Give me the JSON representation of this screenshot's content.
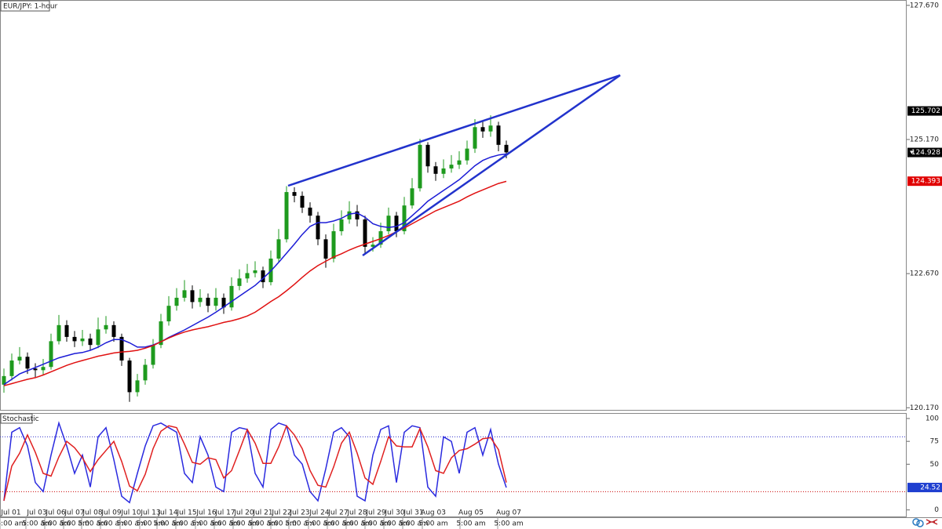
{
  "chart_data": [
    {
      "type": "candlestick",
      "title": "EUR/JPY: 1-hour",
      "x": [
        0,
        1,
        2,
        3,
        4,
        5,
        6,
        7,
        8,
        9,
        10,
        11,
        12,
        13,
        14,
        15,
        16,
        17,
        18,
        19,
        20,
        21,
        22,
        23,
        24,
        25,
        26,
        27,
        28,
        29,
        30,
        31,
        32,
        33,
        34,
        35,
        36,
        37,
        38,
        39,
        40,
        41,
        42,
        43,
        44,
        45,
        46,
        47,
        48,
        49,
        50,
        51,
        52,
        53,
        54,
        55,
        56,
        57,
        58,
        59,
        60,
        61,
        62,
        63,
        64
      ],
      "open": [
        120.6,
        120.76,
        121.05,
        121.12,
        120.9,
        120.87,
        120.93,
        121.41,
        121.71,
        121.49,
        121.41,
        121.46,
        121.34,
        121.63,
        121.71,
        121.49,
        121.05,
        120.46,
        120.68,
        120.97,
        121.34,
        121.78,
        122.07,
        122.22,
        122.36,
        122.14,
        122.22,
        122.07,
        122.22,
        122.04,
        122.44,
        122.58,
        122.68,
        122.73,
        122.51,
        122.95,
        123.31,
        124.19,
        124.12,
        123.9,
        123.75,
        123.31,
        122.95,
        123.46,
        123.68,
        123.83,
        123.68,
        123.17,
        123.21,
        123.46,
        123.75,
        123.46,
        123.94,
        124.26,
        125.07,
        124.67,
        124.53,
        124.63,
        124.7,
        124.78,
        125.0,
        125.4,
        125.32,
        125.43,
        125.07
      ],
      "high": [
        120.9,
        121.18,
        121.3,
        121.2,
        121.0,
        121.08,
        121.55,
        121.9,
        121.8,
        121.6,
        121.62,
        121.55,
        121.85,
        121.88,
        121.78,
        121.55,
        121.1,
        120.8,
        121.08,
        121.45,
        121.92,
        122.25,
        122.4,
        122.55,
        122.45,
        122.38,
        122.3,
        122.4,
        122.3,
        122.6,
        122.75,
        122.85,
        122.9,
        122.8,
        123.1,
        123.5,
        124.3,
        124.28,
        124.2,
        124.0,
        123.82,
        123.4,
        123.6,
        123.85,
        124.02,
        123.95,
        123.75,
        123.35,
        123.62,
        123.9,
        123.82,
        124.1,
        124.45,
        125.18,
        125.12,
        124.75,
        124.8,
        124.88,
        124.95,
        125.15,
        125.55,
        125.5,
        125.62,
        125.5,
        125.15
      ],
      "low": [
        120.45,
        120.68,
        120.98,
        120.8,
        120.74,
        120.78,
        120.88,
        121.35,
        121.4,
        121.3,
        121.32,
        121.25,
        121.28,
        121.55,
        121.4,
        120.95,
        120.28,
        120.38,
        120.6,
        120.9,
        121.28,
        121.7,
        121.98,
        122.15,
        122.02,
        122.05,
        121.95,
        121.98,
        121.92,
        121.98,
        122.36,
        122.5,
        122.6,
        122.4,
        122.45,
        122.88,
        123.25,
        124.0,
        123.8,
        123.62,
        123.2,
        122.78,
        122.88,
        123.38,
        123.6,
        123.55,
        123.05,
        123.08,
        123.15,
        123.4,
        123.35,
        123.4,
        123.88,
        124.2,
        124.55,
        124.4,
        124.45,
        124.55,
        124.62,
        124.7,
        124.92,
        125.2,
        125.22,
        124.95,
        124.82
      ],
      "close": [
        120.76,
        121.05,
        121.12,
        120.9,
        120.87,
        120.93,
        121.41,
        121.71,
        121.49,
        121.41,
        121.46,
        121.34,
        121.63,
        121.71,
        121.49,
        121.05,
        120.46,
        120.68,
        120.97,
        121.34,
        121.78,
        122.07,
        122.22,
        122.36,
        122.14,
        122.22,
        122.07,
        122.22,
        122.04,
        122.44,
        122.58,
        122.68,
        122.73,
        122.51,
        122.95,
        123.31,
        124.19,
        124.12,
        123.9,
        123.75,
        123.31,
        122.95,
        123.46,
        123.68,
        123.83,
        123.68,
        123.17,
        123.21,
        123.46,
        123.75,
        123.46,
        123.94,
        124.26,
        125.07,
        124.67,
        124.53,
        124.63,
        124.7,
        124.78,
        125.0,
        125.4,
        125.32,
        125.43,
        125.07,
        124.93
      ],
      "up_color": "#1e9a1e",
      "down_color": "#000000",
      "overlays": [
        {
          "color": "#1c1cd6",
          "values": [
            120.6,
            120.7,
            120.8,
            120.86,
            120.92,
            120.98,
            121.04,
            121.1,
            121.14,
            121.18,
            121.2,
            121.24,
            121.3,
            121.38,
            121.44,
            121.44,
            121.38,
            121.3,
            121.3,
            121.34,
            121.4,
            121.48,
            121.55,
            121.62,
            121.7,
            121.78,
            121.86,
            121.95,
            122.05,
            122.15,
            122.25,
            122.35,
            122.45,
            122.58,
            122.72,
            122.88,
            123.05,
            123.22,
            123.4,
            123.55,
            123.62,
            123.62,
            123.65,
            123.7,
            123.78,
            123.8,
            123.72,
            123.6,
            123.55,
            123.53,
            123.55,
            123.62,
            123.75,
            123.88,
            124.02,
            124.12,
            124.22,
            124.32,
            124.42,
            124.55,
            124.68,
            124.78,
            124.84,
            124.88,
            124.9
          ]
        },
        {
          "color": "#e01010",
          "values": [
            120.58,
            120.62,
            120.66,
            120.7,
            120.73,
            120.78,
            120.84,
            120.9,
            120.96,
            121.01,
            121.05,
            121.09,
            121.13,
            121.16,
            121.19,
            121.21,
            121.22,
            121.24,
            121.28,
            121.33,
            121.4,
            121.47,
            121.53,
            121.58,
            121.62,
            121.65,
            121.68,
            121.72,
            121.76,
            121.79,
            121.83,
            121.88,
            121.95,
            122.05,
            122.15,
            122.24,
            122.35,
            122.47,
            122.6,
            122.72,
            122.82,
            122.9,
            122.98,
            123.04,
            123.11,
            123.17,
            123.22,
            123.27,
            123.32,
            123.38,
            123.45,
            123.52,
            123.6,
            123.68,
            123.76,
            123.84,
            123.9,
            123.96,
            124.02,
            124.1,
            124.17,
            124.23,
            124.29,
            124.35,
            124.39
          ]
        }
      ],
      "price_markers": [
        {
          "value": 125.702,
          "color": "#000000"
        },
        {
          "value": 124.928,
          "color": "#000000",
          "arrow": true
        },
        {
          "value": 124.393,
          "color": "#e00000"
        }
      ],
      "xlim": [
        -0.5,
        115
      ],
      "ylim": [
        120.13,
        127.77
      ],
      "yticks": [
        {
          "value": 127.67,
          "label": "127.670"
        },
        {
          "value": 125.17,
          "label": "125.170"
        },
        {
          "value": 122.67,
          "label": "122.670"
        },
        {
          "value": 120.17,
          "label": "120.170"
        }
      ],
      "xticks": [
        {
          "value": 0.9,
          "label": "Jul 01"
        },
        {
          "value": 4.2,
          "label": "Jul 03"
        },
        {
          "value": 6.6,
          "label": "Jul 06"
        },
        {
          "value": 9.0,
          "label": "Jul 07"
        },
        {
          "value": 11.3,
          "label": "Jul 08"
        },
        {
          "value": 13.7,
          "label": "Jul 09"
        },
        {
          "value": 16.2,
          "label": "Jul 10"
        },
        {
          "value": 18.7,
          "label": "Jul 13"
        },
        {
          "value": 20.9,
          "label": "Jul 14"
        },
        {
          "value": 23.3,
          "label": "Jul 15"
        },
        {
          "value": 25.8,
          "label": "Jul 16"
        },
        {
          "value": 28.2,
          "label": "Jul 17"
        },
        {
          "value": 30.6,
          "label": "Jul 20"
        },
        {
          "value": 33.0,
          "label": "Jul 21"
        },
        {
          "value": 35.4,
          "label": "Jul 22"
        },
        {
          "value": 37.7,
          "label": "Jul 23"
        },
        {
          "value": 40.2,
          "label": "Jul 24"
        },
        {
          "value": 42.6,
          "label": "Jul 27"
        },
        {
          "value": 45.0,
          "label": "Jul 28"
        },
        {
          "value": 47.4,
          "label": "Jul 29"
        },
        {
          "value": 49.8,
          "label": "Jul 30"
        },
        {
          "value": 52.2,
          "label": "Jul 31"
        },
        {
          "value": 54.7,
          "label": "Aug 03"
        },
        {
          "value": 59.5,
          "label": "Aug 05"
        },
        {
          "value": 64.3,
          "label": "Aug 07"
        }
      ],
      "xtick_time_label": "5:00 am"
    },
    {
      "type": "line",
      "title": "Stochastic",
      "x": [
        0,
        1,
        2,
        3,
        4,
        5,
        6,
        7,
        8,
        9,
        10,
        11,
        12,
        13,
        14,
        15,
        16,
        17,
        18,
        19,
        20,
        21,
        22,
        23,
        24,
        25,
        26,
        27,
        28,
        29,
        30,
        31,
        32,
        33,
        34,
        35,
        36,
        37,
        38,
        39,
        40,
        41,
        42,
        43,
        44,
        45,
        46,
        47,
        48,
        49,
        50,
        51,
        52,
        53,
        54,
        55,
        56,
        57,
        58,
        59,
        60,
        61,
        62,
        63,
        64
      ],
      "series": [
        {
          "color": "#2a2adf",
          "values": [
            10,
            85,
            90,
            70,
            30,
            20,
            60,
            95,
            70,
            40,
            60,
            25,
            80,
            90,
            55,
            15,
            8,
            40,
            70,
            92,
            95,
            90,
            85,
            40,
            30,
            80,
            60,
            25,
            20,
            85,
            90,
            88,
            40,
            25,
            88,
            95,
            92,
            60,
            50,
            20,
            10,
            45,
            85,
            90,
            80,
            15,
            10,
            60,
            88,
            92,
            30,
            85,
            92,
            90,
            25,
            15,
            80,
            75,
            40,
            85,
            90,
            60,
            88,
            50,
            24.52
          ]
        },
        {
          "color": "#e02020",
          "values": [
            10,
            48,
            62,
            82,
            63,
            40,
            37,
            58,
            75,
            68,
            57,
            42,
            55,
            65,
            75,
            53,
            26,
            21,
            39,
            67,
            86,
            92,
            90,
            72,
            52,
            50,
            57,
            55,
            35,
            43,
            65,
            88,
            73,
            51,
            51,
            69,
            92,
            82,
            67,
            43,
            27,
            25,
            47,
            73,
            85,
            62,
            35,
            28,
            53,
            80,
            70,
            69,
            69,
            89,
            69,
            43,
            40,
            57,
            65,
            67,
            72,
            78,
            79,
            66,
            30
          ]
        }
      ],
      "levels": [
        {
          "value": 80,
          "color": "#3333cc"
        },
        {
          "value": 20,
          "color": "#cc0000"
        }
      ],
      "value_marker": {
        "value": 24.52,
        "color": "#1f3fd0"
      },
      "xlim": [
        -0.5,
        115
      ],
      "ylim": [
        -8,
        106
      ],
      "yticks": [
        0,
        50,
        75,
        100
      ]
    }
  ]
}
